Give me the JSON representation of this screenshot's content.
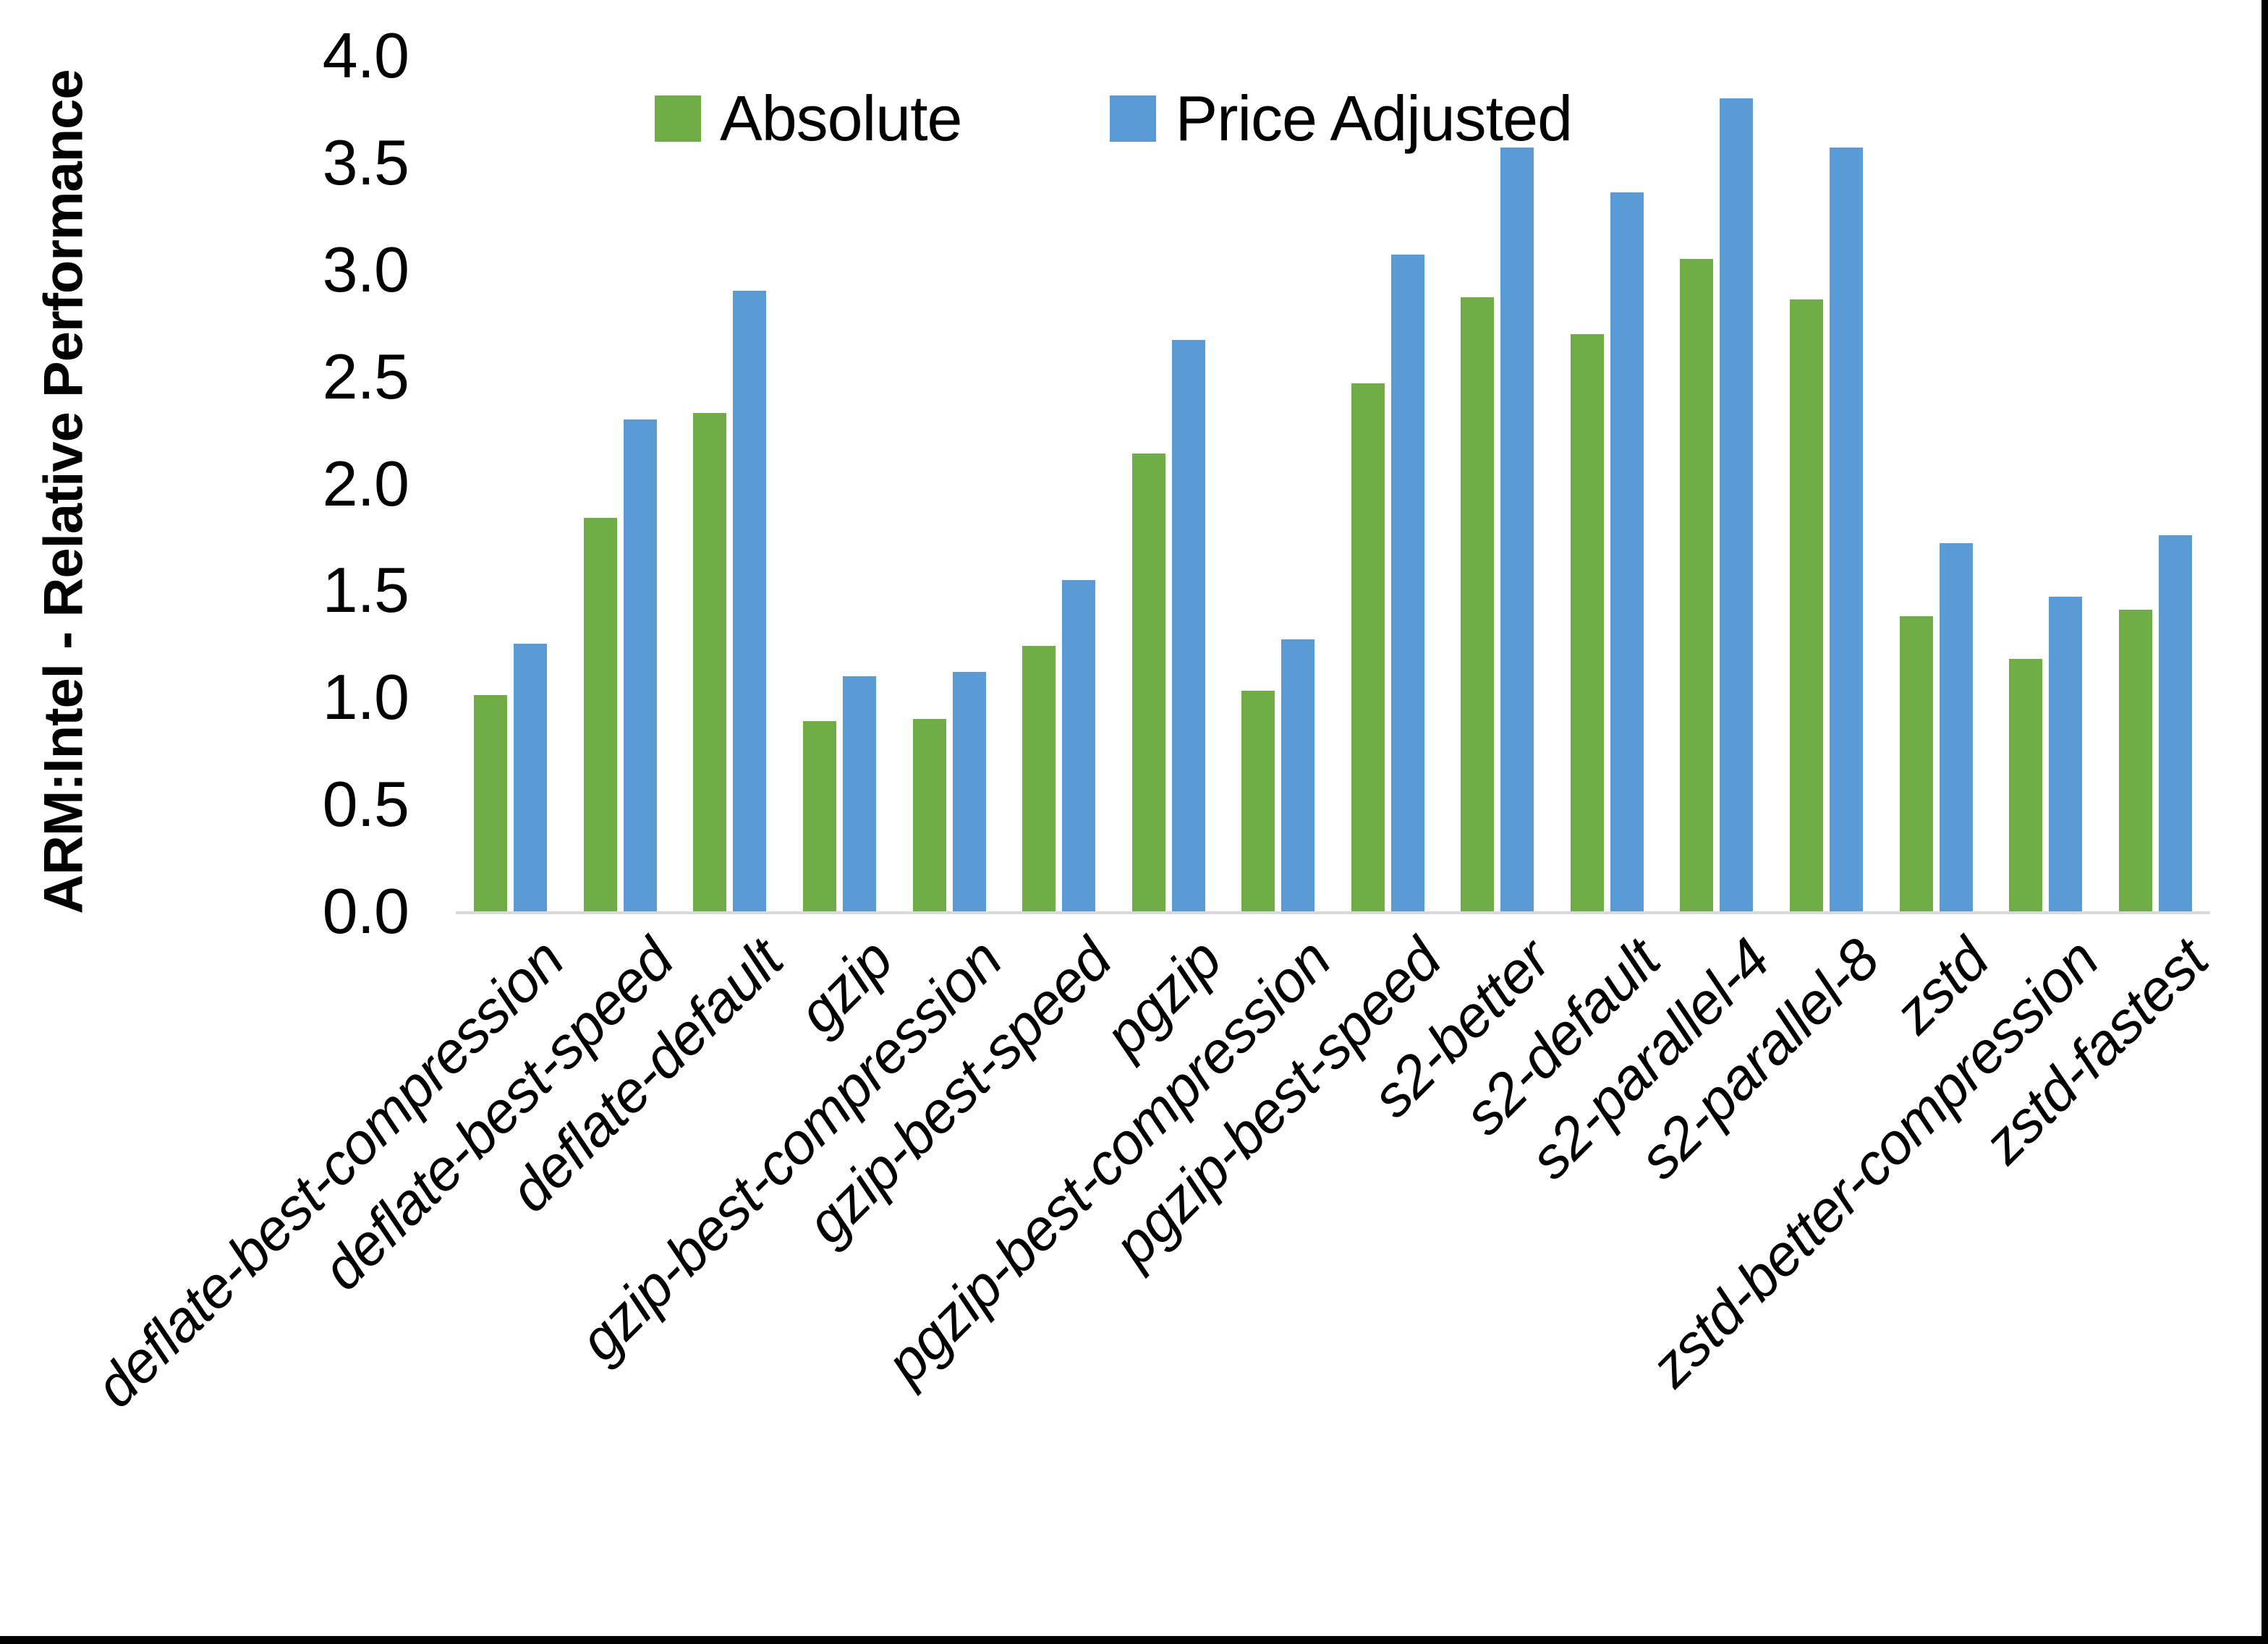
{
  "figure": {
    "background": "#ffffff",
    "frame_border_color": "#000000",
    "axis_line_color": "#D9D9D9"
  },
  "chart_data": {
    "type": "bar",
    "title": "",
    "xlabel": "",
    "ylabel": "ARM:Intel - Relative Performance",
    "ylim": [
      0,
      4
    ],
    "ytick_step": 0.5,
    "grid": false,
    "legend_position": "top",
    "categories": [
      "deflate-best-compression",
      "deflate-best-speed",
      "deflate-default",
      "gzip",
      "gzip-best-compression",
      "gzip-best-speed",
      "pgzip",
      "pgzip-best-compression",
      "pgzip-best-speed",
      "s2-better",
      "s2-default",
      "s2-parallel-4",
      "s2-parallel-8",
      "zstd",
      "zstd-better-compression",
      "zstd-fastest"
    ],
    "series": [
      {
        "name": "Absolute",
        "color": "#70AD47",
        "values": [
          1.01,
          1.84,
          2.33,
          0.89,
          0.9,
          1.24,
          2.14,
          1.03,
          2.47,
          2.87,
          2.7,
          3.05,
          2.86,
          1.38,
          1.18,
          1.41
        ]
      },
      {
        "name": "Price Adjusted",
        "color": "#5B9BD5",
        "values": [
          1.25,
          2.3,
          2.9,
          1.1,
          1.12,
          1.55,
          2.67,
          1.27,
          3.07,
          3.57,
          3.36,
          3.8,
          3.57,
          1.72,
          1.47,
          1.76
        ]
      }
    ]
  }
}
